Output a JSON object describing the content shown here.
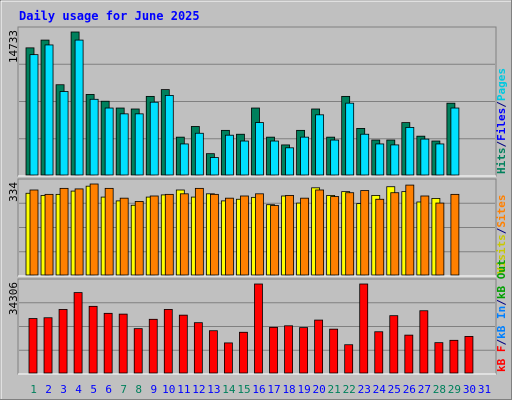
{
  "title": "Daily usage for June 2025",
  "colors": {
    "background": "#C0C0C0",
    "title_text": "#0000FF",
    "hits": "#00805C",
    "files": "#00E0FF",
    "pages": "#00C8E0",
    "visits": "#FFFF00",
    "sites": "#FF8000",
    "kbytes": "#FF0000",
    "kb_in": "#0080FF",
    "kb_out": "#00A000",
    "weekend_day": "#00805C",
    "weekday": "#0000FF"
  },
  "chart_data": [
    {
      "type": "bar",
      "panel": "hits-files-pages",
      "ytick_max_label": "14733",
      "ylim": [
        0,
        14733
      ],
      "legend_right": [
        "Hits",
        "/",
        "Files",
        "/",
        "Pages"
      ],
      "categories": [
        "1",
        "2",
        "3",
        "4",
        "5",
        "6",
        "7",
        "8",
        "9",
        "10",
        "11",
        "12",
        "13",
        "14",
        "15",
        "16",
        "17",
        "18",
        "19",
        "20",
        "21",
        "22",
        "23",
        "24",
        "25",
        "26",
        "27",
        "28",
        "29",
        "30",
        "31"
      ],
      "series": [
        {
          "name": "Hits",
          "values": [
            13100,
            13900,
            9300,
            14733,
            8300,
            7600,
            6900,
            6800,
            8100,
            8800,
            3900,
            5000,
            2200,
            4600,
            4200,
            6900,
            3900,
            3100,
            4600,
            6800,
            3900,
            8100,
            4800,
            3600,
            3600,
            5400,
            4000,
            3500,
            7400,
            0,
            0
          ]
        },
        {
          "name": "Files",
          "values": [
            12400,
            13400,
            8600,
            13900,
            7800,
            6900,
            6300,
            6300,
            7500,
            8200,
            3200,
            4300,
            1800,
            4100,
            3500,
            5400,
            3500,
            2800,
            3900,
            6200,
            3600,
            7400,
            4200,
            3200,
            3100,
            4900,
            3700,
            3200,
            6900,
            0,
            0
          ]
        },
        {
          "name": "Pages",
          "values": [
            0,
            0,
            0,
            0,
            0,
            0,
            0,
            0,
            0,
            0,
            0,
            0,
            0,
            0,
            0,
            0,
            0,
            0,
            0,
            0,
            0,
            0,
            0,
            0,
            0,
            0,
            0,
            0,
            0,
            0,
            0
          ]
        }
      ]
    },
    {
      "type": "bar",
      "panel": "visits-sites",
      "ytick_max_label": "334",
      "ylim": [
        0,
        334
      ],
      "legend_right": [
        "Visits",
        "/",
        "Sites"
      ],
      "categories": [
        "1",
        "2",
        "3",
        "4",
        "5",
        "6",
        "7",
        "8",
        "9",
        "10",
        "11",
        "12",
        "13",
        "14",
        "15",
        "16",
        "17",
        "18",
        "19",
        "20",
        "21",
        "22",
        "23",
        "24",
        "25",
        "26",
        "27",
        "28",
        "29",
        "30",
        "31"
      ],
      "series": [
        {
          "name": "Visits",
          "values": [
            300,
            292,
            296,
            308,
            326,
            286,
            272,
            256,
            286,
            294,
            312,
            286,
            298,
            272,
            278,
            285,
            258,
            290,
            264,
            320,
            292,
            306,
            262,
            292,
            324,
            306,
            268,
            281,
            0,
            0,
            0
          ]
        },
        {
          "name": "Sites",
          "values": [
            312,
            296,
            318,
            316,
            334,
            318,
            282,
            270,
            290,
            296,
            298,
            318,
            296,
            282,
            290,
            298,
            255,
            292,
            282,
            312,
            288,
            302,
            310,
            278,
            302,
            330,
            290,
            264,
            296,
            0,
            0
          ]
        }
      ]
    },
    {
      "type": "bar",
      "panel": "kbytes",
      "ytick_max_label": "34306",
      "ylim": [
        0,
        34306
      ],
      "legend_right": [
        "kB F",
        "/",
        "kB In",
        "/",
        "kB Out"
      ],
      "categories": [
        "1",
        "2",
        "3",
        "4",
        "5",
        "6",
        "7",
        "8",
        "9",
        "10",
        "11",
        "12",
        "13",
        "14",
        "15",
        "16",
        "17",
        "18",
        "19",
        "20",
        "21",
        "22",
        "23",
        "24",
        "25",
        "26",
        "27",
        "28",
        "29",
        "30",
        "31"
      ],
      "series": [
        {
          "name": "kB F",
          "values": [
            21000,
            21300,
            24500,
            31000,
            25700,
            23000,
            22700,
            17100,
            20700,
            24500,
            22300,
            19400,
            16300,
            11600,
            15700,
            34306,
            17600,
            18200,
            17500,
            20400,
            16900,
            10900,
            34306,
            15900,
            22100,
            14600,
            24000,
            11700,
            12600,
            14100,
            0
          ]
        }
      ]
    }
  ],
  "x_day_labels": [
    "1",
    "2",
    "3",
    "4",
    "5",
    "6",
    "7",
    "8",
    "9",
    "10",
    "11",
    "12",
    "13",
    "14",
    "15",
    "16",
    "17",
    "18",
    "19",
    "20",
    "21",
    "22",
    "23",
    "24",
    "25",
    "26",
    "27",
    "28",
    "29",
    "30",
    "31"
  ],
  "weekend_days": [
    1,
    7,
    8,
    14,
    15,
    21,
    22,
    28,
    29
  ]
}
